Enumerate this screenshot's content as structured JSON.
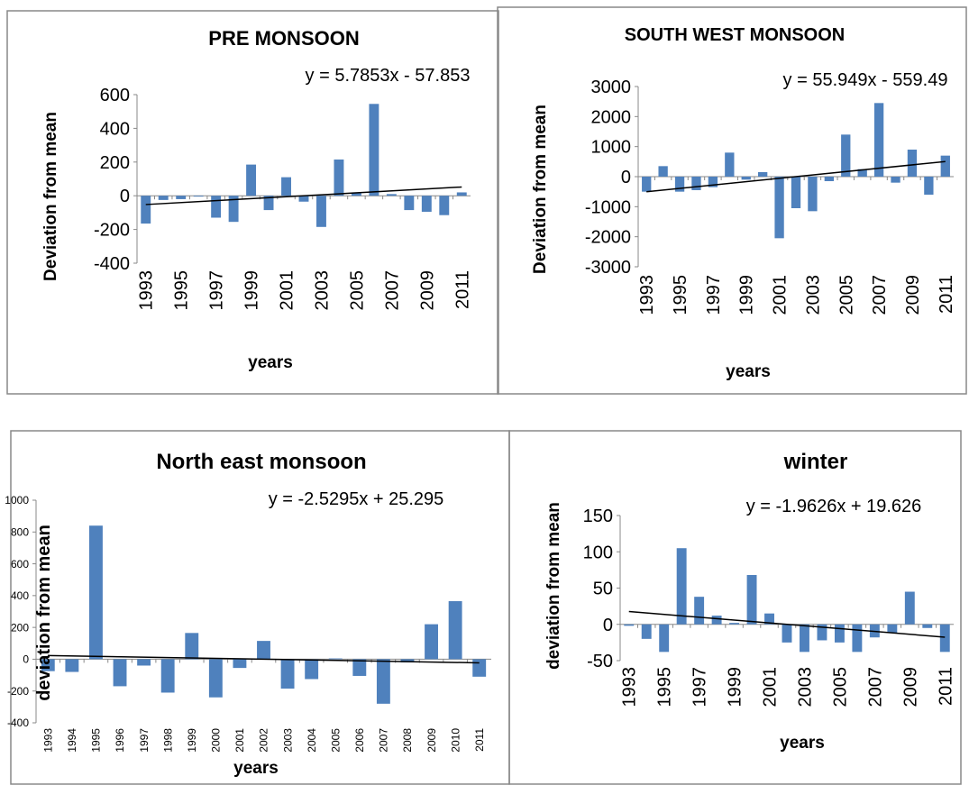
{
  "chart_data": [
    {
      "type": "bar",
      "title": "PRE MONSOON",
      "y_label": "Deviation from mean",
      "x_label": "years",
      "categories": [
        "1993",
        null,
        "1995",
        null,
        "1997",
        null,
        "1999",
        null,
        "2001",
        null,
        "2003",
        null,
        "2005",
        null,
        "2007",
        null,
        "2009",
        null,
        "2011"
      ],
      "values": [
        -165,
        -25,
        -20,
        -5,
        -130,
        -155,
        185,
        -85,
        110,
        -35,
        -185,
        215,
        20,
        545,
        10,
        -85,
        -95,
        -115,
        20
      ],
      "color": "#4f81bd",
      "ylim": [
        -400,
        600
      ],
      "yticks": [
        -400,
        -200,
        0,
        200,
        400,
        600
      ],
      "trendline": {
        "label": "y = 5.7853x - 57.853",
        "slope": 5.7853,
        "intercept": -57.853
      }
    },
    {
      "type": "bar",
      "title": "SOUTH WEST MONSOON",
      "y_label": "Deviation from mean",
      "x_label": "years",
      "categories": [
        "1993",
        null,
        "1995",
        null,
        "1997",
        null,
        "1999",
        null,
        "2001",
        null,
        "2003",
        null,
        "2005",
        null,
        "2007",
        null,
        "2009",
        null,
        "2011"
      ],
      "values": [
        -500,
        350,
        -500,
        -450,
        -350,
        800,
        -100,
        150,
        -2050,
        -1050,
        -1150,
        -150,
        1400,
        250,
        2450,
        -200,
        900,
        -600,
        700
      ],
      "color": "#4f81bd",
      "ylim": [
        -3000,
        3000
      ],
      "yticks": [
        -3000,
        -2000,
        -1000,
        0,
        1000,
        2000,
        3000
      ],
      "trendline": {
        "label": "y = 55.949x - 559.49",
        "slope": 55.949,
        "intercept": -559.49
      }
    },
    {
      "type": "bar",
      "title": "North east monsoon",
      "y_label": "deviation from mean",
      "x_label": "years",
      "categories": [
        "1993",
        "1994",
        "1995",
        "1996",
        "1997",
        "1998",
        "1999",
        "2000",
        "2001",
        "2002",
        "2003",
        "2004",
        "2005",
        "2006",
        "2007",
        "2008",
        "2009",
        "2010",
        "2011"
      ],
      "values": [
        -75,
        -80,
        840,
        -170,
        -40,
        -210,
        165,
        -240,
        -55,
        115,
        -185,
        -125,
        5,
        -105,
        -280,
        -20,
        220,
        365,
        -110
      ],
      "color": "#4f81bd",
      "ylim": [
        -400,
        1000
      ],
      "yticks": [
        -400,
        -200,
        0,
        200,
        400,
        600,
        800,
        1000
      ],
      "trendline": {
        "label": "y = -2.5295x + 25.295",
        "slope": -2.5295,
        "intercept": 25.295
      }
    },
    {
      "type": "bar",
      "title": "winter",
      "y_label": "deviation from mean",
      "x_label": "years",
      "categories": [
        "1993",
        null,
        "1995",
        null,
        "1997",
        null,
        "1999",
        null,
        "2001",
        null,
        "2003",
        null,
        "2005",
        null,
        "2007",
        null,
        "2009",
        null,
        "2011"
      ],
      "values": [
        -2,
        -20,
        -38,
        105,
        38,
        12,
        2,
        68,
        15,
        -25,
        -38,
        -22,
        -25,
        -38,
        -18,
        -12,
        45,
        -5,
        -38
      ],
      "color": "#4f81bd",
      "ylim": [
        -50,
        150
      ],
      "yticks": [
        -50,
        0,
        50,
        100,
        150
      ],
      "trendline": {
        "label": "y = -1.9626x + 19.626",
        "slope": -1.9626,
        "intercept": 19.626
      }
    }
  ]
}
